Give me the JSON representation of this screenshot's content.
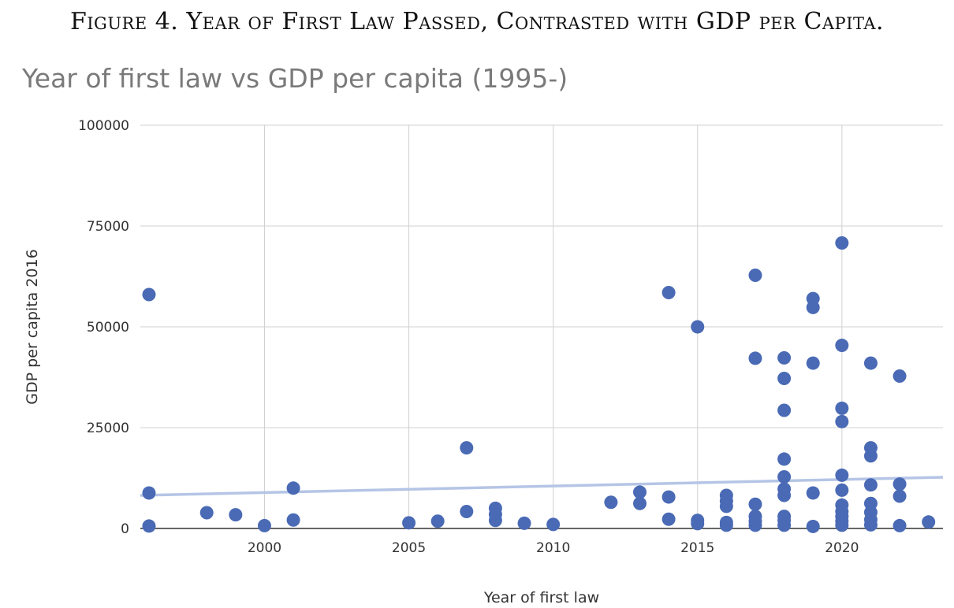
{
  "figure_caption": "Figure 4. Year of First Law Passed, Contrasted with GDP per Capita.",
  "chart_data": {
    "type": "scatter",
    "title": "Year of first law vs GDP per capita (1995-)",
    "xlabel": "Year of first law",
    "ylabel": "GDP per capita 2016",
    "xlim": [
      1995.7,
      2023.5
    ],
    "ylim": [
      0,
      100000
    ],
    "x_ticks": [
      2000,
      2005,
      2010,
      2015,
      2020
    ],
    "x_tick_labels": [
      "2000",
      "2005",
      "2010",
      "2015",
      "2020"
    ],
    "y_ticks": [
      0,
      25000,
      50000,
      75000,
      100000
    ],
    "y_tick_labels": [
      "0",
      "25000",
      "50000",
      "75000",
      "100000"
    ],
    "grid": true,
    "trendline": {
      "type": "linear",
      "x": [
        1995.7,
        2023.5
      ],
      "y": [
        8200,
        12700
      ]
    },
    "colors": {
      "points": "#4a6ab5",
      "trendline": "#b5c5e6",
      "grid": "#d0d0d0"
    },
    "points": [
      {
        "x": 1996,
        "y": 58000
      },
      {
        "x": 1996,
        "y": 8800
      },
      {
        "x": 1996,
        "y": 600
      },
      {
        "x": 1998,
        "y": 3900
      },
      {
        "x": 1999,
        "y": 3400
      },
      {
        "x": 2000,
        "y": 700
      },
      {
        "x": 2001,
        "y": 10000
      },
      {
        "x": 2001,
        "y": 2100
      },
      {
        "x": 2005,
        "y": 1400
      },
      {
        "x": 2006,
        "y": 1800
      },
      {
        "x": 2007,
        "y": 20000
      },
      {
        "x": 2007,
        "y": 4200
      },
      {
        "x": 2008,
        "y": 5000
      },
      {
        "x": 2008,
        "y": 3500
      },
      {
        "x": 2008,
        "y": 2000
      },
      {
        "x": 2009,
        "y": 1300
      },
      {
        "x": 2010,
        "y": 1000
      },
      {
        "x": 2012,
        "y": 6500
      },
      {
        "x": 2013,
        "y": 9000
      },
      {
        "x": 2013,
        "y": 6200
      },
      {
        "x": 2014,
        "y": 58500
      },
      {
        "x": 2014,
        "y": 7800
      },
      {
        "x": 2014,
        "y": 2300
      },
      {
        "x": 2015,
        "y": 50000
      },
      {
        "x": 2015,
        "y": 2000
      },
      {
        "x": 2015,
        "y": 1200
      },
      {
        "x": 2016,
        "y": 8200
      },
      {
        "x": 2016,
        "y": 6800
      },
      {
        "x": 2016,
        "y": 5500
      },
      {
        "x": 2016,
        "y": 1500
      },
      {
        "x": 2016,
        "y": 800
      },
      {
        "x": 2017,
        "y": 62800
      },
      {
        "x": 2017,
        "y": 42200
      },
      {
        "x": 2017,
        "y": 6000
      },
      {
        "x": 2017,
        "y": 3000
      },
      {
        "x": 2017,
        "y": 1800
      },
      {
        "x": 2017,
        "y": 800
      },
      {
        "x": 2018,
        "y": 42300
      },
      {
        "x": 2018,
        "y": 37200
      },
      {
        "x": 2018,
        "y": 29300
      },
      {
        "x": 2018,
        "y": 17200
      },
      {
        "x": 2018,
        "y": 12800
      },
      {
        "x": 2018,
        "y": 9800
      },
      {
        "x": 2018,
        "y": 8200
      },
      {
        "x": 2018,
        "y": 3000
      },
      {
        "x": 2018,
        "y": 2000
      },
      {
        "x": 2018,
        "y": 800
      },
      {
        "x": 2019,
        "y": 57000
      },
      {
        "x": 2019,
        "y": 54800
      },
      {
        "x": 2019,
        "y": 41000
      },
      {
        "x": 2019,
        "y": 8800
      },
      {
        "x": 2019,
        "y": 500
      },
      {
        "x": 2020,
        "y": 70800
      },
      {
        "x": 2020,
        "y": 45400
      },
      {
        "x": 2020,
        "y": 29800
      },
      {
        "x": 2020,
        "y": 26500
      },
      {
        "x": 2020,
        "y": 13200
      },
      {
        "x": 2020,
        "y": 9500
      },
      {
        "x": 2020,
        "y": 5800
      },
      {
        "x": 2020,
        "y": 4200
      },
      {
        "x": 2020,
        "y": 3000
      },
      {
        "x": 2020,
        "y": 1800
      },
      {
        "x": 2020,
        "y": 800
      },
      {
        "x": 2021,
        "y": 41000
      },
      {
        "x": 2021,
        "y": 20000
      },
      {
        "x": 2021,
        "y": 18000
      },
      {
        "x": 2021,
        "y": 10800
      },
      {
        "x": 2021,
        "y": 6200
      },
      {
        "x": 2021,
        "y": 4000
      },
      {
        "x": 2021,
        "y": 2200
      },
      {
        "x": 2021,
        "y": 900
      },
      {
        "x": 2022,
        "y": 37800
      },
      {
        "x": 2022,
        "y": 11000
      },
      {
        "x": 2022,
        "y": 8000
      },
      {
        "x": 2022,
        "y": 700
      },
      {
        "x": 2023,
        "y": 1600
      }
    ]
  }
}
